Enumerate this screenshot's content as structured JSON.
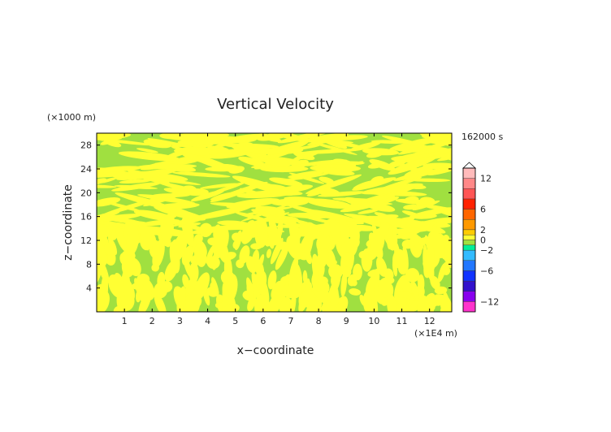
{
  "chart_data": {
    "type": "heatmap",
    "title": "Vertical Velocity",
    "xlabel": "x−coordinate",
    "ylabel": "z−coordinate",
    "x_unit": "(×1E4 m)",
    "y_unit": "(×1000 m)",
    "time_label": "162000 s",
    "xlim": [
      0,
      12.8
    ],
    "ylim": [
      0,
      30
    ],
    "x_ticks": [
      1,
      2,
      3,
      4,
      5,
      6,
      7,
      8,
      9,
      10,
      11,
      12
    ],
    "y_ticks": [
      4,
      8,
      12,
      16,
      20,
      24,
      28
    ],
    "field_colors": {
      "negative_small": "#a0e040",
      "positive_small": "#ffff33"
    },
    "colorbar": {
      "range": [
        -14,
        14
      ],
      "tick_values": [
        12,
        6,
        2,
        0,
        -2,
        -6,
        -12
      ],
      "tick_labels": [
        "12",
        "6",
        "2",
        "0",
        "−2",
        "−6",
        "−12"
      ],
      "levels": [
        {
          "lo": -14,
          "hi": -12,
          "color": "#ff33cc"
        },
        {
          "lo": -12,
          "hi": -10,
          "color": "#8800ee"
        },
        {
          "lo": -10,
          "hi": -8,
          "color": "#3311cc"
        },
        {
          "lo": -8,
          "hi": -6,
          "color": "#1133ff"
        },
        {
          "lo": -6,
          "hi": -4,
          "color": "#2277ff"
        },
        {
          "lo": -4,
          "hi": -2,
          "color": "#33bbff"
        },
        {
          "lo": -2,
          "hi": -1,
          "color": "#00ee99"
        },
        {
          "lo": -1,
          "hi": 0,
          "color": "#a0e040"
        },
        {
          "lo": 0,
          "hi": 1,
          "color": "#ffff33"
        },
        {
          "lo": 1,
          "hi": 2,
          "color": "#ffcc00"
        },
        {
          "lo": 2,
          "hi": 4,
          "color": "#ff9900"
        },
        {
          "lo": 4,
          "hi": 6,
          "color": "#ff6600"
        },
        {
          "lo": 6,
          "hi": 8,
          "color": "#ff2200"
        },
        {
          "lo": 8,
          "hi": 10,
          "color": "#ff5555"
        },
        {
          "lo": 10,
          "hi": 12,
          "color": "#ff8888"
        },
        {
          "lo": 12,
          "hi": 14,
          "color": "#ffbbbb"
        }
      ]
    }
  }
}
